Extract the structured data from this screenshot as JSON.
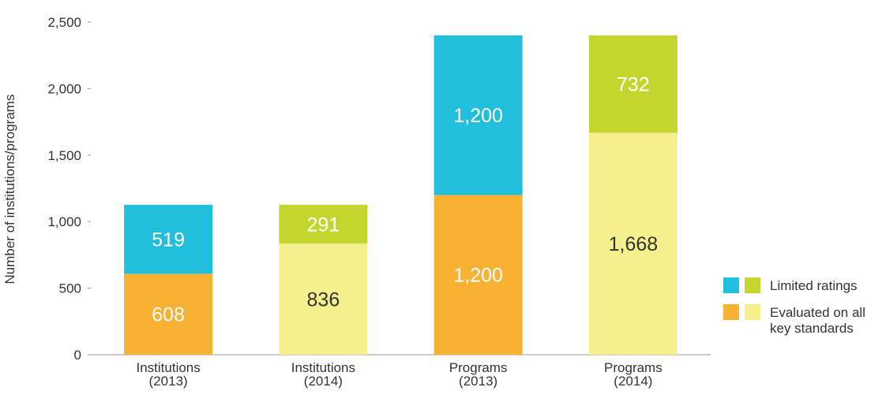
{
  "chart_data": {
    "type": "stacked_bar",
    "y_label": "Number of institutions/programs",
    "categories": [
      "Institutions\n(2013)",
      "Institutions\n(2014)",
      "Programs\n(2013)",
      "Programs\n(2014)"
    ],
    "series": [
      {
        "name": "Evaluated on all\nkey standards",
        "colors": [
          "#f7b133",
          "#f5ef8e",
          "#f7b133",
          "#f5ef8e"
        ],
        "label_colors": [
          "#ffffff",
          "#333333",
          "#ffffff",
          "#333333"
        ],
        "values": [
          608,
          836,
          1200,
          1668
        ],
        "value_labels": [
          "608",
          "836",
          "1,200",
          "1,668"
        ]
      },
      {
        "name": "Limited ratings",
        "colors": [
          "#22bfdd",
          "#c4d62d",
          "#22bfdd",
          "#c4d62d"
        ],
        "label_colors": [
          "#ffffff",
          "#ffffff",
          "#ffffff",
          "#ffffff"
        ],
        "values": [
          519,
          291,
          1200,
          732
        ],
        "value_labels": [
          "519",
          "291",
          "1,200",
          "732"
        ]
      }
    ],
    "ylim": [
      0,
      2500
    ],
    "yticks": [
      0,
      500,
      {
        "value": 1000,
        "label": "1,000"
      },
      {
        "value": 1500,
        "label": "1,500"
      },
      {
        "value": 2000,
        "label": "2,000"
      },
      {
        "value": 2500,
        "label": "2,500"
      }
    ],
    "legend": "lower right"
  }
}
